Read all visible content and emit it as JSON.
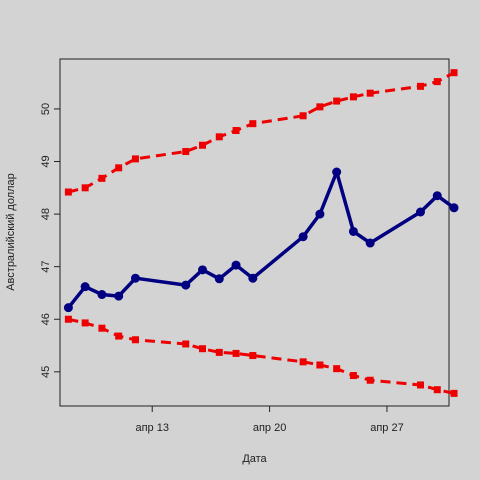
{
  "chart_data": {
    "type": "line",
    "xlabel": "Дата",
    "ylabel": "Австралийский доллар",
    "x_tick_labels": [
      "апр 13",
      "апр 20",
      "апр 27"
    ],
    "x_tick_days": [
      13,
      20,
      27
    ],
    "xlim_days": [
      7.5,
      30.7
    ],
    "ylim": [
      44.35,
      50.95
    ],
    "y_ticks": [
      45,
      46,
      47,
      48,
      49,
      50
    ],
    "y_tick_labels": [
      "45",
      "46",
      "47",
      "48",
      "49",
      "50"
    ],
    "x_days": [
      8,
      9,
      10,
      11,
      12,
      15,
      16,
      17,
      18,
      19,
      22,
      23,
      24,
      25,
      26,
      29,
      30,
      31
    ],
    "series": [
      {
        "color": "#000080",
        "style": "solid",
        "marker": "circle",
        "values": [
          46.22,
          46.62,
          46.47,
          46.44,
          46.78,
          46.65,
          46.94,
          46.77,
          47.03,
          46.78,
          47.57,
          48.0,
          48.8,
          47.67,
          47.45,
          48.04,
          48.35,
          48.12
        ]
      },
      {
        "color": "#ee0000",
        "style": "dashed",
        "marker": "square",
        "values": [
          48.42,
          48.5,
          48.68,
          48.88,
          49.05,
          49.19,
          49.31,
          49.47,
          49.59,
          49.72,
          49.87,
          50.04,
          50.15,
          50.23,
          50.3,
          50.43,
          50.52,
          50.69
        ]
      },
      {
        "color": "#ee0000",
        "style": "dashed",
        "marker": "square",
        "values": [
          46.0,
          45.93,
          45.83,
          45.68,
          45.61,
          45.53,
          45.44,
          45.37,
          45.35,
          45.31,
          45.19,
          45.13,
          45.06,
          44.93,
          44.84,
          44.75,
          44.66,
          44.59
        ]
      }
    ]
  }
}
